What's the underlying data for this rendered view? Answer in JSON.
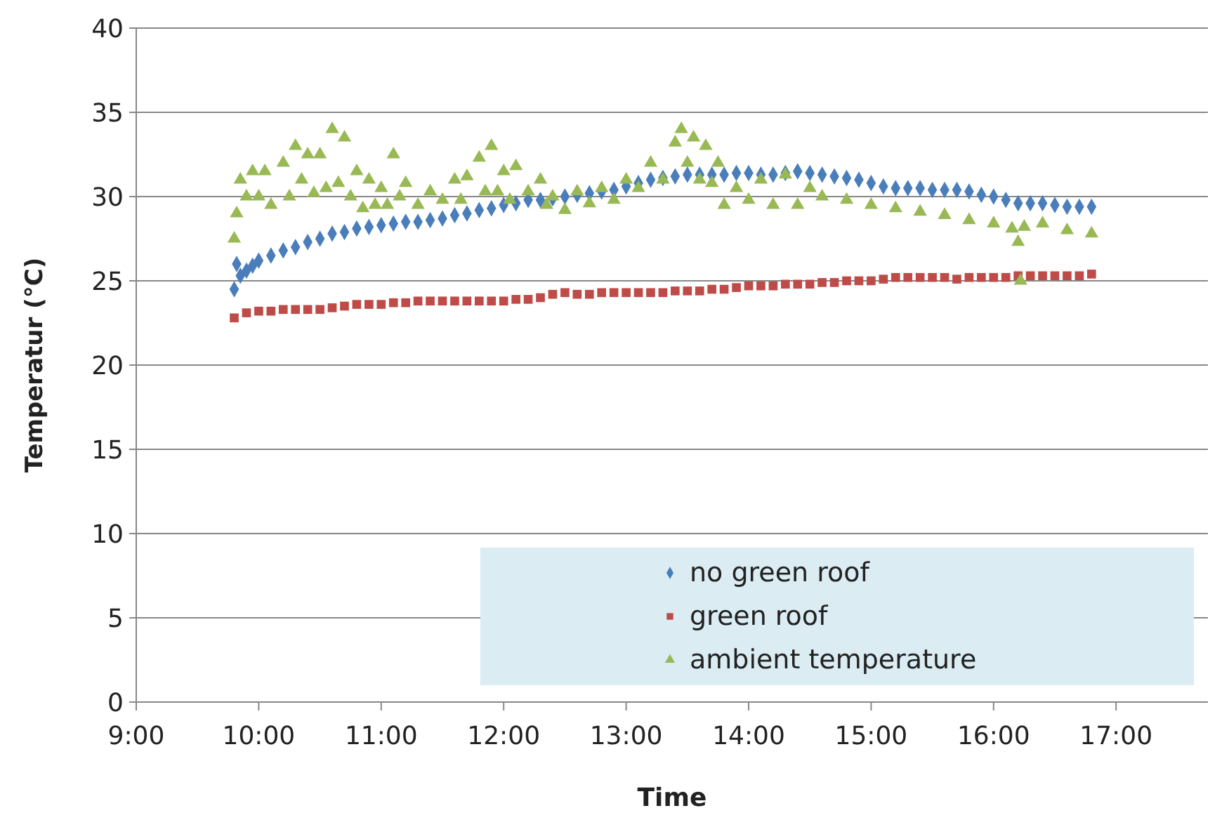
{
  "chart_data": {
    "type": "scatter",
    "xlabel": "Time",
    "ylabel": "Temperatur (°C)",
    "xlim": [
      9,
      17.75
    ],
    "ylim": [
      0,
      40
    ],
    "xticks": [
      {
        "value": 9,
        "label": "9:00"
      },
      {
        "value": 10,
        "label": "10:00"
      },
      {
        "value": 11,
        "label": "11:00"
      },
      {
        "value": 12,
        "label": "12:00"
      },
      {
        "value": 13,
        "label": "13:00"
      },
      {
        "value": 14,
        "label": "14:00"
      },
      {
        "value": 15,
        "label": "15:00"
      },
      {
        "value": 16,
        "label": "16:00"
      },
      {
        "value": 17,
        "label": "17:00"
      }
    ],
    "yticks": [
      0,
      5,
      10,
      15,
      20,
      25,
      30,
      35,
      40
    ],
    "grid": "y",
    "legend": "bottom right",
    "series": [
      {
        "name": "no green roof",
        "color": "#4a7ebb",
        "marker": "diamond",
        "x": [
          9.8,
          9.82,
          9.85,
          9.9,
          9.95,
          10.0,
          10.1,
          10.2,
          10.3,
          10.4,
          10.5,
          10.6,
          10.7,
          10.8,
          10.9,
          11.0,
          11.1,
          11.2,
          11.3,
          11.4,
          11.5,
          11.6,
          11.7,
          11.8,
          11.9,
          12.0,
          12.1,
          12.2,
          12.3,
          12.4,
          12.5,
          12.6,
          12.7,
          12.8,
          12.9,
          13.0,
          13.1,
          13.2,
          13.3,
          13.4,
          13.5,
          13.6,
          13.7,
          13.8,
          13.9,
          14.0,
          14.1,
          14.2,
          14.3,
          14.4,
          14.5,
          14.6,
          14.7,
          14.8,
          14.9,
          15.0,
          15.1,
          15.2,
          15.3,
          15.4,
          15.5,
          15.6,
          15.7,
          15.8,
          15.9,
          16.0,
          16.1,
          16.2,
          16.3,
          16.4,
          16.5,
          16.6,
          16.7,
          16.8
        ],
        "values": [
          24.5,
          26,
          25.3,
          25.6,
          25.9,
          26.2,
          26.5,
          26.8,
          27.0,
          27.3,
          27.5,
          27.8,
          27.9,
          28.1,
          28.2,
          28.3,
          28.4,
          28.5,
          28.5,
          28.6,
          28.7,
          28.9,
          29.0,
          29.2,
          29.3,
          29.5,
          29.6,
          29.8,
          29.8,
          29.9,
          30.0,
          30.1,
          30.2,
          30.3,
          30.4,
          30.6,
          30.8,
          31.0,
          31.1,
          31.2,
          31.3,
          31.3,
          31.3,
          31.3,
          31.4,
          31.4,
          31.3,
          31.3,
          31.4,
          31.5,
          31.4,
          31.3,
          31.2,
          31.1,
          31.0,
          30.8,
          30.6,
          30.5,
          30.5,
          30.5,
          30.4,
          30.4,
          30.4,
          30.3,
          30.1,
          30.0,
          29.8,
          29.6,
          29.6,
          29.6,
          29.5,
          29.4,
          29.4,
          29.4
        ]
      },
      {
        "name": "green roof",
        "color": "#be4b48",
        "marker": "square",
        "x": [
          9.8,
          9.9,
          10.0,
          10.1,
          10.2,
          10.3,
          10.4,
          10.5,
          10.6,
          10.7,
          10.8,
          10.9,
          11.0,
          11.1,
          11.2,
          11.3,
          11.4,
          11.5,
          11.6,
          11.7,
          11.8,
          11.9,
          12.0,
          12.1,
          12.2,
          12.3,
          12.4,
          12.5,
          12.6,
          12.7,
          12.8,
          12.9,
          13.0,
          13.1,
          13.2,
          13.3,
          13.4,
          13.5,
          13.6,
          13.7,
          13.8,
          13.9,
          14.0,
          14.1,
          14.2,
          14.3,
          14.4,
          14.5,
          14.6,
          14.7,
          14.8,
          14.9,
          15.0,
          15.1,
          15.2,
          15.3,
          15.4,
          15.5,
          15.6,
          15.7,
          15.8,
          15.9,
          16.0,
          16.1,
          16.2,
          16.3,
          16.4,
          16.5,
          16.6,
          16.7,
          16.8
        ],
        "values": [
          22.8,
          23.1,
          23.2,
          23.2,
          23.3,
          23.3,
          23.3,
          23.3,
          23.4,
          23.5,
          23.6,
          23.6,
          23.6,
          23.7,
          23.7,
          23.8,
          23.8,
          23.8,
          23.8,
          23.8,
          23.8,
          23.8,
          23.8,
          23.9,
          23.9,
          24.0,
          24.2,
          24.3,
          24.2,
          24.2,
          24.3,
          24.3,
          24.3,
          24.3,
          24.3,
          24.3,
          24.4,
          24.4,
          24.4,
          24.5,
          24.5,
          24.6,
          24.7,
          24.7,
          24.7,
          24.8,
          24.8,
          24.8,
          24.9,
          24.9,
          25.0,
          25.0,
          25.0,
          25.1,
          25.2,
          25.2,
          25.2,
          25.2,
          25.2,
          25.1,
          25.2,
          25.2,
          25.2,
          25.2,
          25.3,
          25.3,
          25.3,
          25.3,
          25.3,
          25.3,
          25.4
        ]
      },
      {
        "name": "ambient temperature",
        "color": "#98b954",
        "marker": "triangle",
        "x": [
          9.8,
          9.82,
          9.85,
          9.9,
          9.95,
          10.0,
          10.05,
          10.1,
          10.2,
          10.25,
          10.3,
          10.35,
          10.4,
          10.45,
          10.5,
          10.55,
          10.6,
          10.65,
          10.7,
          10.75,
          10.8,
          10.85,
          10.9,
          10.95,
          11.0,
          11.05,
          11.1,
          11.15,
          11.2,
          11.3,
          11.4,
          11.5,
          11.6,
          11.65,
          11.7,
          11.8,
          11.85,
          11.9,
          11.95,
          12.0,
          12.05,
          12.1,
          12.2,
          12.3,
          12.35,
          12.4,
          12.5,
          12.6,
          12.7,
          12.8,
          12.9,
          13.0,
          13.1,
          13.2,
          13.3,
          13.4,
          13.45,
          13.5,
          13.55,
          13.6,
          13.65,
          13.7,
          13.75,
          13.8,
          13.9,
          14.0,
          14.1,
          14.2,
          14.3,
          14.4,
          14.5,
          14.6,
          14.8,
          15.0,
          15.2,
          15.4,
          15.6,
          15.8,
          16.0,
          16.15,
          16.2,
          16.22,
          16.25,
          16.4,
          16.6,
          16.8
        ],
        "values": [
          27.5,
          29,
          31,
          30,
          31.5,
          30,
          31.5,
          29.5,
          32,
          30,
          33,
          31,
          32.5,
          30.2,
          32.5,
          30.5,
          34,
          30.8,
          33.5,
          30,
          31.5,
          29.3,
          31,
          29.5,
          30.5,
          29.5,
          32.5,
          30,
          30.8,
          29.5,
          30.3,
          29.8,
          31,
          29.8,
          31.2,
          32.3,
          30.3,
          33,
          30.3,
          31.5,
          29.8,
          31.8,
          30.3,
          31,
          29.5,
          30,
          29.2,
          30.3,
          29.6,
          30.5,
          29.8,
          31,
          30.5,
          32,
          31,
          33.2,
          34,
          32,
          33.5,
          31,
          33,
          30.8,
          32,
          29.5,
          30.5,
          29.8,
          31,
          29.5,
          31.3,
          29.5,
          30.5,
          30,
          29.8,
          29.5,
          29.3,
          29.1,
          28.9,
          28.6,
          28.4,
          28.1,
          27.3,
          25,
          28.2,
          28.4,
          28,
          27.8
        ]
      }
    ]
  }
}
